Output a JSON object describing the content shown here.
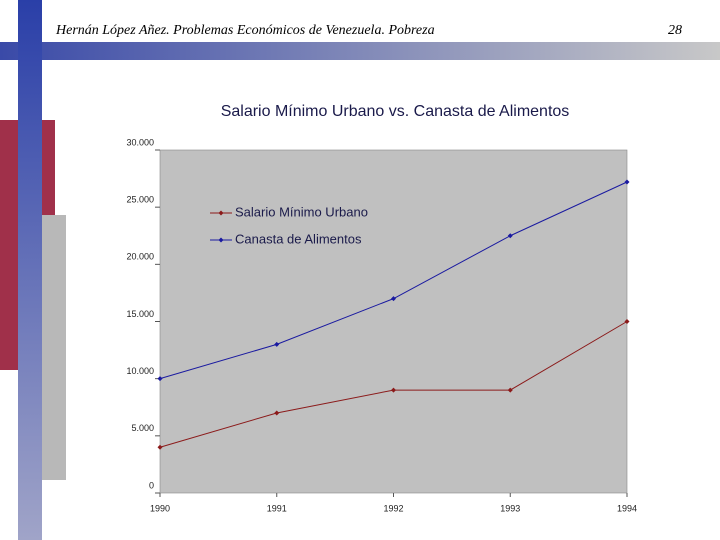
{
  "header": {
    "title": "Hernán López Añez. Problemas Económicos de Venezuela. Pobreza",
    "page": "28"
  },
  "chart_data": {
    "type": "line",
    "title": "Salario Mínimo Urbano vs. Canasta de Alimentos",
    "x": [
      1990,
      1991,
      1992,
      1993,
      1994
    ],
    "xlim": [
      1990,
      1994
    ],
    "xticks": [
      1990,
      1991,
      1992,
      1993,
      1994
    ],
    "ylim": [
      0,
      30000
    ],
    "yticks": [
      0,
      {
        "value": 5000,
        "label": "5.000"
      },
      {
        "value": 10000,
        "label": "10.000"
      },
      {
        "value": 15000,
        "label": "15.000"
      },
      {
        "value": 20000,
        "label": "20.000"
      },
      {
        "value": 25000,
        "label": "25.000"
      },
      {
        "value": 30000,
        "label": "30.000"
      }
    ],
    "grid": false,
    "legend": "upper left",
    "plot_background": "#c0c0c0",
    "series": [
      {
        "name": "Salario Mínimo Urbano",
        "color": "#8b1a1a",
        "values": [
          4000,
          7000,
          9000,
          9000,
          15000
        ]
      },
      {
        "name": "Canasta de Alimentos",
        "color": "#1a1aa0",
        "values": [
          10000,
          13000,
          17000,
          22500,
          27200
        ]
      }
    ]
  }
}
